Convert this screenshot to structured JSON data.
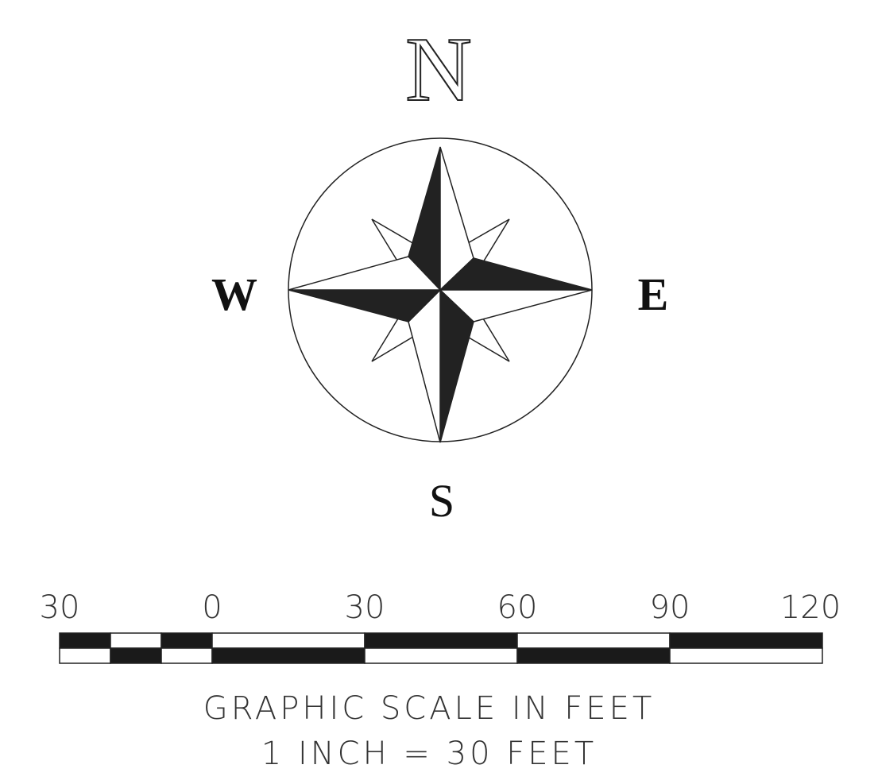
{
  "compass": {
    "north": "N",
    "south": "S",
    "east": "E",
    "west": "W"
  },
  "scale": {
    "labels": [
      "30",
      "0",
      "30",
      "60",
      "90",
      "120"
    ],
    "caption": "GRAPHIC SCALE IN FEET",
    "ratio": "1 INCH = 30 FEET"
  }
}
